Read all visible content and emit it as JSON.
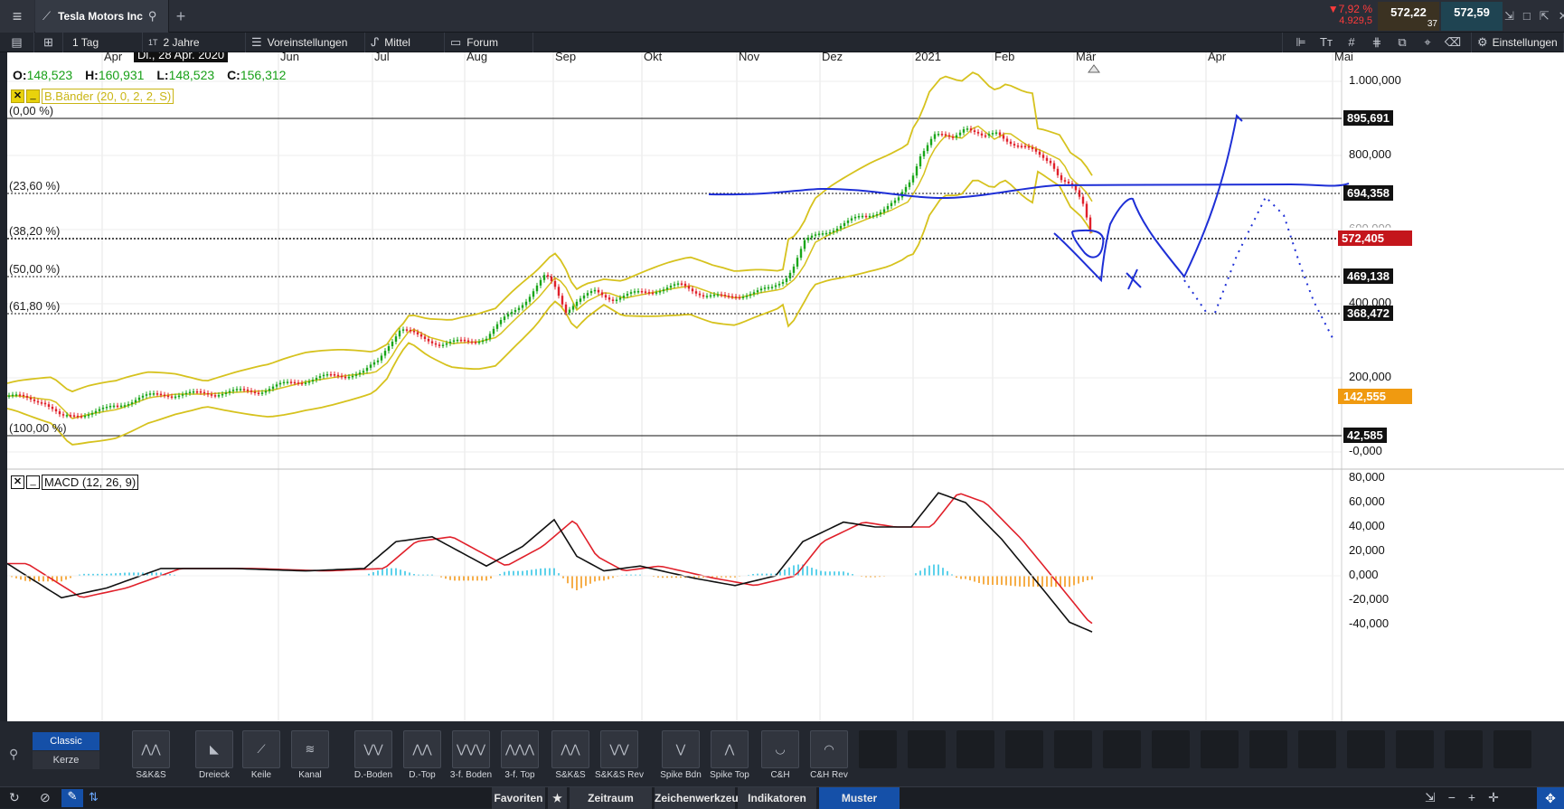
{
  "window": {
    "tab_title": "Tesla Motors Inc"
  },
  "quotes": {
    "change_pct": "▼7,92 %",
    "change_abs": "4.929,5",
    "bid": "572,22",
    "ask": "572,59",
    "spread": "37"
  },
  "toolbar": {
    "interval": "1 Tag",
    "range_icon": "1T",
    "range": "2 Jahre",
    "presets": "Voreinstellungen",
    "average": "Mittel",
    "forum": "Forum",
    "settings": "Einstellungen",
    "date_tooltip": "Di., 28 Apr. 2020"
  },
  "ohlc": {
    "o_label": "O:",
    "o": "148,523",
    "h_label": "H:",
    "h": "160,931",
    "l_label": "L:",
    "l": "148,523",
    "c_label": "C:",
    "c": "156,312"
  },
  "indicators": {
    "bollinger": "B.Bänder (20, 0, 2, 2, S)",
    "macd": "MACD (12, 26, 9)"
  },
  "colors": {
    "up": "#1aa61a",
    "down": "#e0202a",
    "bollinger": "#d6c21e",
    "drawing": "#1e2fd6",
    "macd_line": "#111111",
    "signal_line": "#e0202a",
    "hist_pos": "#36c6e6",
    "hist_neg": "#f49a1c",
    "price_badge": "#c4161c",
    "low_badge": "#f09a10"
  },
  "months": [
    "Apr",
    "Jun",
    "Jul",
    "Aug",
    "Sep",
    "Okt",
    "Nov",
    "Dez",
    "2021",
    "Feb",
    "Mär",
    "Apr",
    "Mai"
  ],
  "fib_levels": [
    {
      "label": "(0,00 %)",
      "value": "895,691"
    },
    {
      "label": "(23,60 %)",
      "value": "694,358"
    },
    {
      "label": "(38,20 %)",
      "value": "572,405"
    },
    {
      "label": "(50,00 %)",
      "value": "469,138"
    },
    {
      "label": "(61,80 %)",
      "value": "368,472"
    },
    {
      "label": "(100,00 %)",
      "value": "42,585"
    }
  ],
  "price_axis": [
    "1.000,000",
    "800,000",
    "600,000",
    "400,000",
    "200,000",
    "-0,000"
  ],
  "low_marker": "142,555",
  "macd_axis": [
    "80,000",
    "60,000",
    "40,000",
    "20,000",
    "0,000",
    "-20,000",
    "-40,000"
  ],
  "patterns": {
    "mode_classic": "Classic",
    "mode_candle": "Kerze",
    "items": [
      "S&K&S",
      "Dreieck",
      "Keile",
      "Kanal",
      "D.-Boden",
      "D.-Top",
      "3-f. Boden",
      "3-f. Top",
      "S&K&S",
      "S&K&S Rev",
      "Spike Bdn",
      "Spike Top",
      "C&H",
      "C&H Rev"
    ]
  },
  "bottom_tabs": [
    "Favoriten",
    "Zeitraum",
    "Zeichenwerkzeuge",
    "Indikatoren",
    "Muster"
  ]
}
